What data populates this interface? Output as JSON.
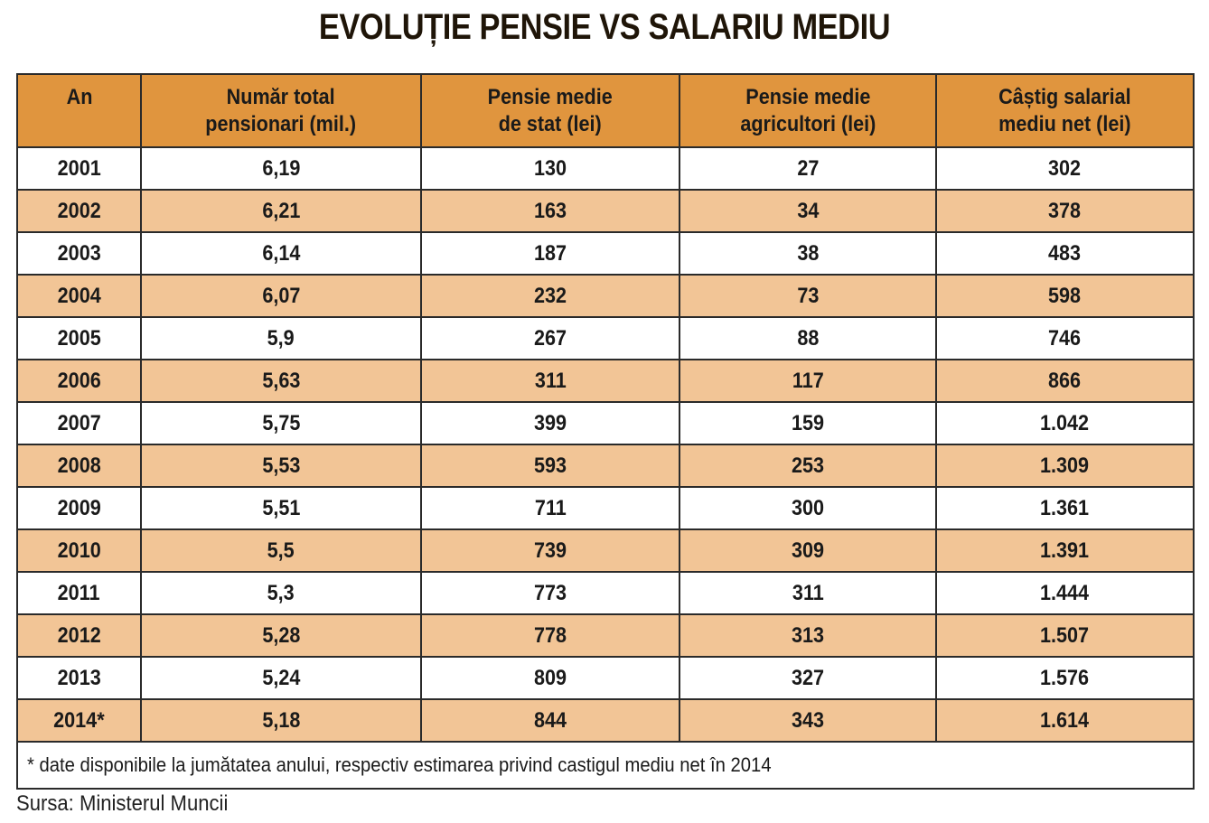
{
  "title": "EVOLUȚIE PENSIE VS SALARIU MEDIU",
  "table": {
    "headers": [
      "An",
      "Număr total\npensionari (mil.)",
      "Pensie medie\nde stat (lei)",
      "Pensie medie\nagricultori (lei)",
      "Câștig salarial\nmediu net (lei)"
    ],
    "rows": [
      [
        "2001",
        "6,19",
        "130",
        "27",
        "302"
      ],
      [
        "2002",
        "6,21",
        "163",
        "34",
        "378"
      ],
      [
        "2003",
        "6,14",
        "187",
        "38",
        "483"
      ],
      [
        "2004",
        "6,07",
        "232",
        "73",
        "598"
      ],
      [
        "2005",
        "5,9",
        "267",
        "88",
        "746"
      ],
      [
        "2006",
        "5,63",
        "311",
        "117",
        "866"
      ],
      [
        "2007",
        "5,75",
        "399",
        "159",
        "1.042"
      ],
      [
        "2008",
        "5,53",
        "593",
        "253",
        "1.309"
      ],
      [
        "2009",
        "5,51",
        "711",
        "300",
        "1.361"
      ],
      [
        "2010",
        "5,5",
        "739",
        "309",
        "1.391"
      ],
      [
        "2011",
        "5,3",
        "773",
        "311",
        "1.444"
      ],
      [
        "2012",
        "5,28",
        "778",
        "313",
        "1.507"
      ],
      [
        "2013",
        "5,24",
        "809",
        "327",
        "1.576"
      ],
      [
        "2014*",
        "5,18",
        "844",
        "343",
        "1.614"
      ]
    ],
    "footnote": "* date disponibile la jumătatea anului, respectiv estimarea privind castigul mediu net în 2014"
  },
  "source": "Sursa: Ministerul Muncii",
  "colors": {
    "header_bg": "#e0953e",
    "row_alt_bg": "#f2c596",
    "row_bg": "#ffffff",
    "border": "#2a2a2a"
  }
}
